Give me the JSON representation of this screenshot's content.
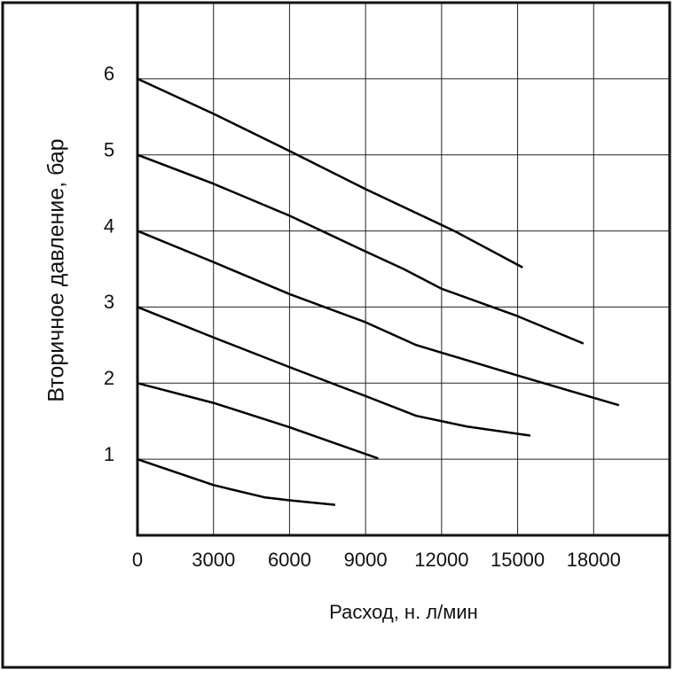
{
  "chart_data": {
    "type": "line",
    "xlabel": "Расход, н. л/мин",
    "ylabel": "Вторичное давление, бар",
    "xlim": [
      0,
      21000
    ],
    "xticks": [
      0,
      3000,
      6000,
      9000,
      12000,
      15000,
      18000
    ],
    "ylim": [
      0,
      7
    ],
    "yticks": [
      1,
      2,
      3,
      4,
      5,
      6
    ],
    "grid": true,
    "series": [
      {
        "color": "#000000",
        "x": [
          0,
          3000,
          6000,
          9000,
          12500,
          15200
        ],
        "values": [
          6,
          5.54,
          5.05,
          4.55,
          4.0,
          3.52
        ]
      },
      {
        "color": "#000000",
        "x": [
          0,
          3000,
          6000,
          9000,
          10500,
          12000,
          15000,
          17600
        ],
        "values": [
          5,
          4.62,
          4.2,
          3.73,
          3.5,
          3.24,
          2.88,
          2.52
        ]
      },
      {
        "color": "#000000",
        "x": [
          0,
          3000,
          6000,
          9000,
          11000,
          15000,
          19000
        ],
        "values": [
          4,
          3.59,
          3.17,
          2.8,
          2.5,
          2.1,
          1.71
        ]
      },
      {
        "color": "#000000",
        "x": [
          0,
          3000,
          6000,
          9000,
          11000,
          13000,
          15500
        ],
        "values": [
          3,
          2.6,
          2.21,
          1.83,
          1.57,
          1.43,
          1.31
        ]
      },
      {
        "color": "#000000",
        "x": [
          0,
          3000,
          6000,
          9500
        ],
        "values": [
          2,
          1.74,
          1.42,
          1.01
        ]
      },
      {
        "color": "#000000",
        "x": [
          0,
          3000,
          5000,
          6000,
          7800
        ],
        "values": [
          1,
          0.66,
          0.5,
          0.46,
          0.4
        ]
      }
    ]
  }
}
